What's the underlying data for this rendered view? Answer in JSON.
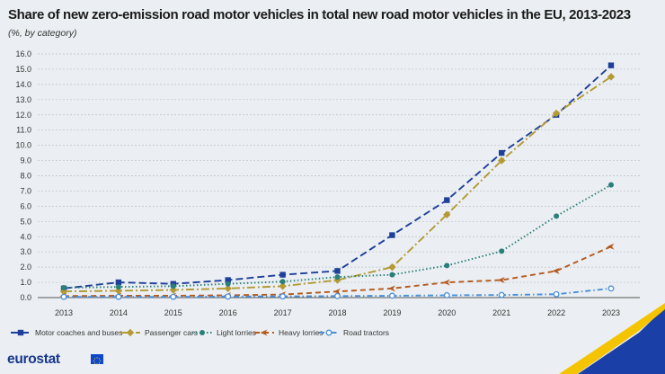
{
  "chart_data": {
    "type": "line",
    "title": "Share of new zero-emission road motor vehicles in total new road motor vehicles in the EU, 2013-2023",
    "subtitle": "(%, by category)",
    "xlabel": "",
    "ylabel": "",
    "ylim": [
      0,
      16
    ],
    "grid": true,
    "legend_position": "bottom-left",
    "categories": [
      "2013",
      "2014",
      "2015",
      "2016",
      "2017",
      "2018",
      "2019",
      "2020",
      "2021",
      "2022",
      "2023"
    ],
    "y_ticks": [
      "0.0",
      "1.0",
      "2.0",
      "3.0",
      "4.0",
      "5.0",
      "6.0",
      "7.0",
      "8.0",
      "9.0",
      "10.0",
      "11.0",
      "12.0",
      "13.0",
      "14.0",
      "15.0",
      "16.0"
    ],
    "series": [
      {
        "name": "Motor coaches and buses",
        "color": "#1e3f9a",
        "dash": "8,4",
        "marker": "square",
        "values": [
          0.6,
          1.0,
          0.9,
          1.15,
          1.5,
          1.75,
          4.1,
          6.4,
          9.5,
          12.0,
          15.25
        ]
      },
      {
        "name": "Passenger cars",
        "color": "#b39a34",
        "dash": "9,3,2,3",
        "marker": "diamond",
        "values": [
          0.4,
          0.45,
          0.5,
          0.6,
          0.75,
          1.15,
          2.0,
          5.45,
          9.0,
          12.1,
          14.5
        ]
      },
      {
        "name": "Light lorries",
        "color": "#2a7f78",
        "dash": "1.5,2.5",
        "marker": "circle",
        "values": [
          0.65,
          0.7,
          0.75,
          0.9,
          1.05,
          1.35,
          1.5,
          2.1,
          3.05,
          5.35,
          7.4
        ]
      },
      {
        "name": "Heavy lorries",
        "color": "#b5591d",
        "dash": "6,4",
        "marker": "arrow",
        "values": [
          0.1,
          0.12,
          0.12,
          0.15,
          0.2,
          0.4,
          0.6,
          1.0,
          1.15,
          1.75,
          3.35
        ]
      },
      {
        "name": "Road tractors",
        "color": "#4a90d9",
        "dash": "6,3,1.5,3",
        "marker": "open-circle",
        "values": [
          0.05,
          0.05,
          0.05,
          0.07,
          0.08,
          0.1,
          0.12,
          0.15,
          0.17,
          0.22,
          0.6
        ]
      }
    ]
  },
  "branding": {
    "logo_text": "eurostat",
    "flag_icon": "eu-flag-icon",
    "accent_colors": [
      "#f5c400",
      "#1a3fa6"
    ]
  }
}
